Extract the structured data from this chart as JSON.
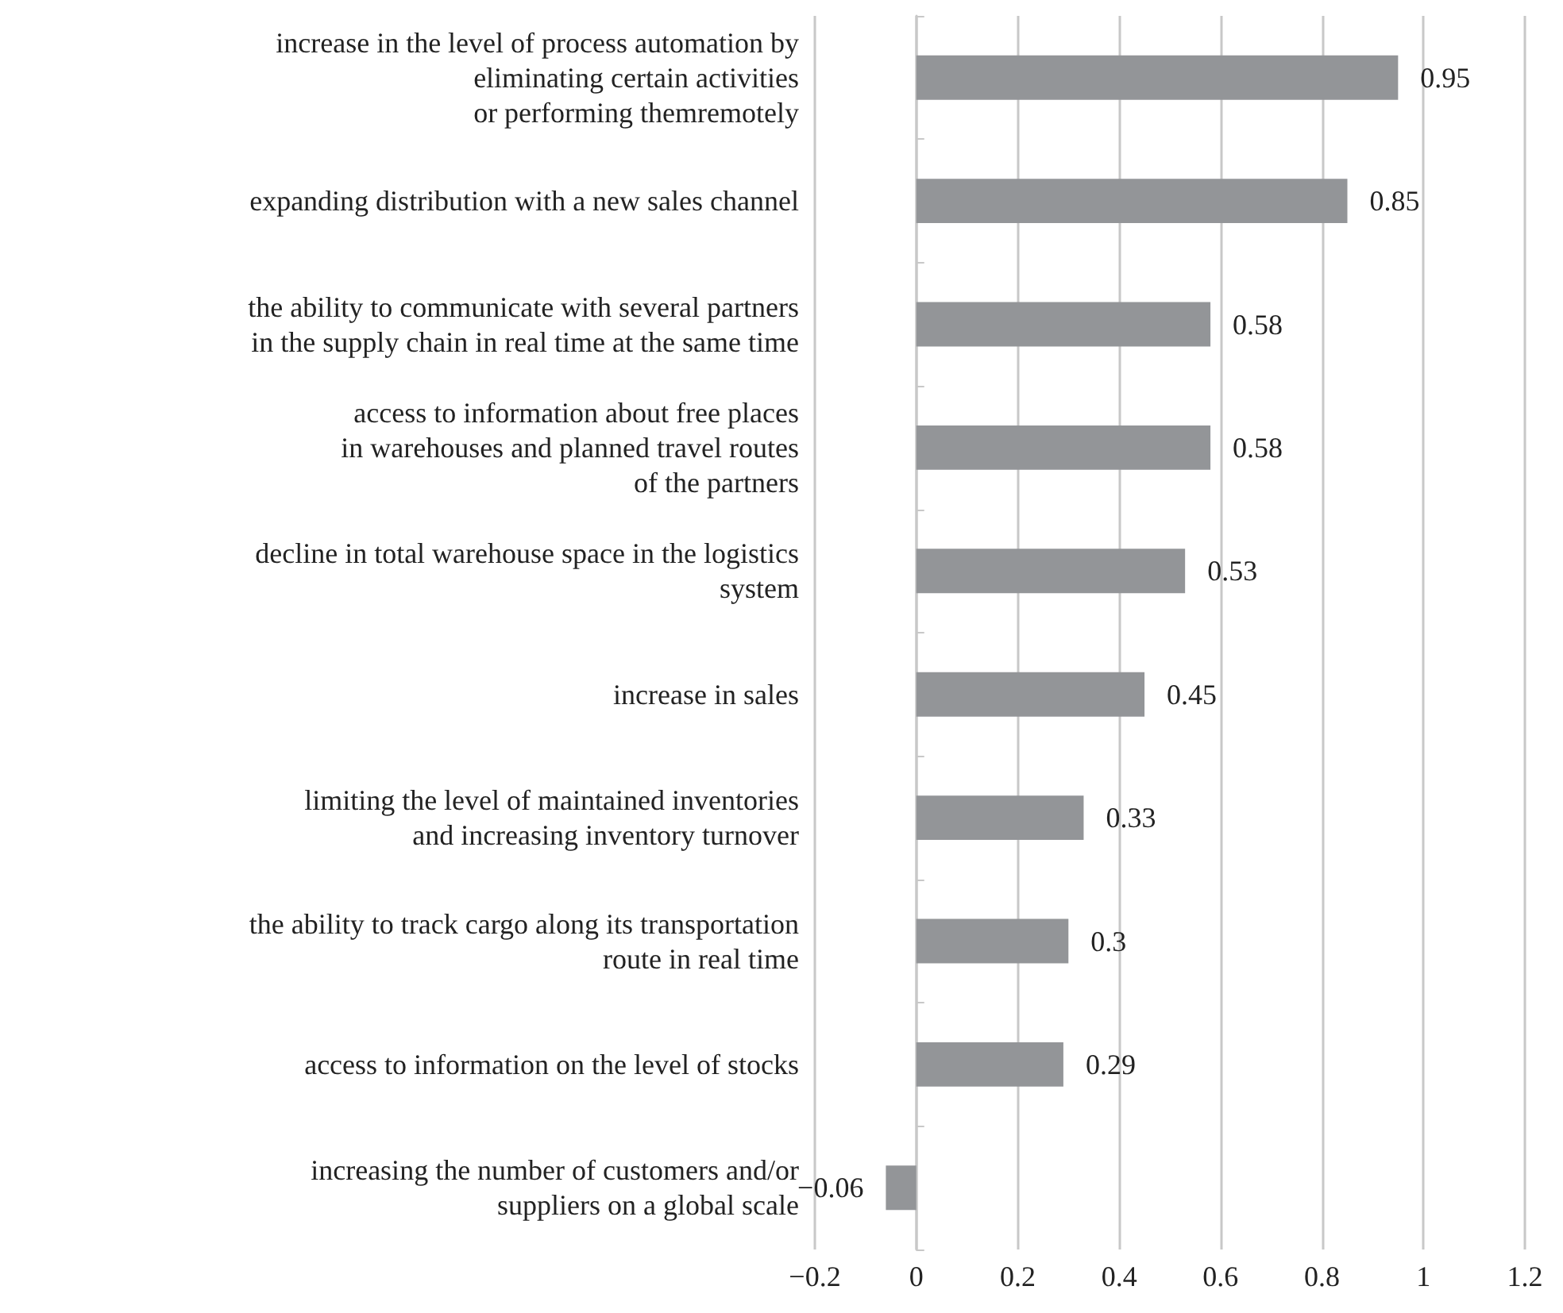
{
  "chart_data": {
    "type": "bar",
    "orientation": "horizontal",
    "categories": [
      "increase in the level of process automation by\neliminating certain activities\nor performing themremotely",
      "expanding distribution with a new sales channel",
      "the ability to communicate with several partners\nin the supply chain in real time at the same time",
      "access to information about free places\nin warehouses and planned travel routes\nof the partners",
      "decline in total warehouse space in the logistics\nsystem",
      "increase in sales",
      "limiting the level of maintained inventories\nand increasing inventory turnover",
      "the ability to track cargo along its transportation\nroute in real time",
      "access to information on the level of stocks",
      "increasing the number of customers and/or\nsuppliers on a global scale"
    ],
    "values": [
      0.95,
      0.85,
      0.58,
      0.58,
      0.53,
      0.45,
      0.33,
      0.3,
      0.29,
      -0.06
    ],
    "color": "#939598",
    "xlim": [
      -0.2,
      1.2
    ],
    "xticks": [
      -0.2,
      0,
      0.2,
      0.4,
      0.6,
      0.8,
      1,
      1.2
    ],
    "grid": "x",
    "data_labels": true
  }
}
